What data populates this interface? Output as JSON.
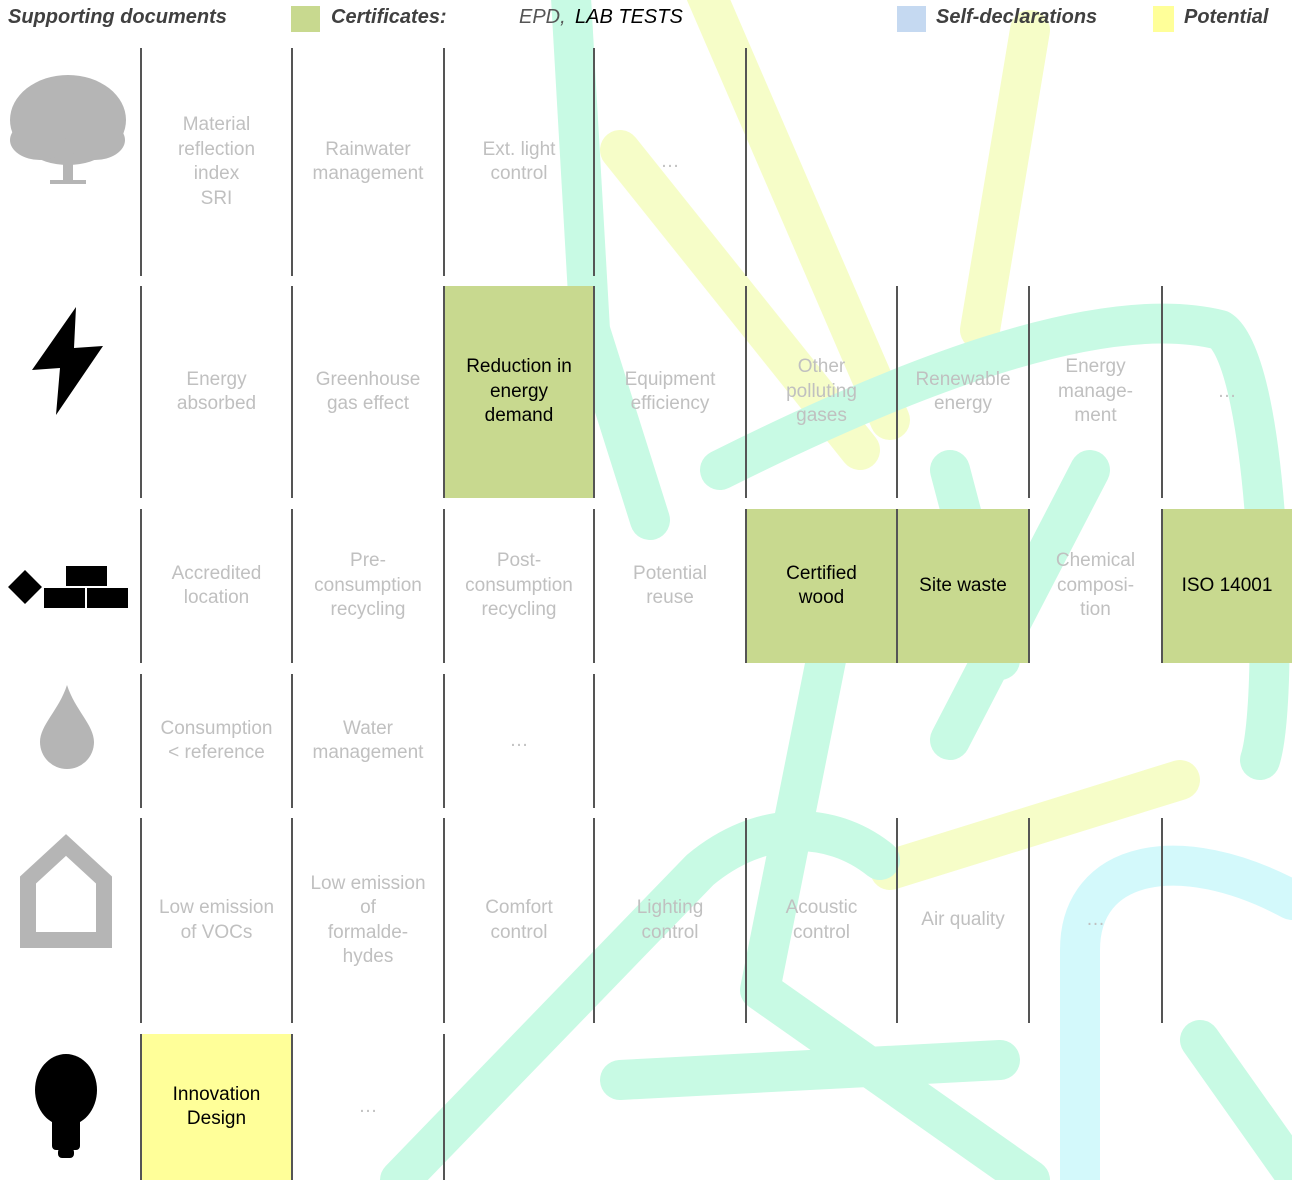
{
  "legend": {
    "title": "Supporting documents",
    "items": [
      {
        "label": "Certificates:",
        "color": "#c8d98f",
        "examples": [
          "EPD,",
          "LAB TESTS"
        ]
      },
      {
        "label": "Self-declarations",
        "color": "#c5d9f1"
      },
      {
        "label": "Potential",
        "color": "#ffff99"
      }
    ]
  },
  "rows": [
    {
      "cells": [
        {
          "lines": [
            "Material",
            "reflection",
            "index",
            "SRI"
          ]
        },
        {
          "lines": [
            "Rainwater",
            "management"
          ]
        },
        {
          "lines": [
            "Ext. light",
            "control"
          ]
        },
        {
          "lines": [
            "…"
          ]
        }
      ]
    },
    {
      "cells": [
        {
          "lines": [
            "Energy",
            "absorbed"
          ]
        },
        {
          "lines": [
            "Greenhouse",
            "gas effect"
          ]
        },
        {
          "lines": [
            "Reduction in",
            "energy",
            "demand"
          ],
          "color": "#c8d98f"
        },
        {
          "lines": [
            "Equipment",
            "efficiency"
          ]
        },
        {
          "lines": [
            "Other",
            "polluting",
            "gases"
          ]
        },
        {
          "lines": [
            "Renewable",
            "energy"
          ]
        },
        {
          "lines": [
            "Energy",
            "manage-",
            "ment"
          ]
        },
        {
          "lines": [
            "…"
          ]
        }
      ]
    },
    {
      "cells": [
        {
          "lines": [
            "Accredited",
            "location"
          ]
        },
        {
          "lines": [
            "Pre-",
            "consumption",
            "recycling"
          ]
        },
        {
          "lines": [
            "Post-",
            "consumption",
            "recycling"
          ]
        },
        {
          "lines": [
            "Potential",
            "reuse"
          ]
        },
        {
          "lines": [
            "Certified",
            "wood"
          ],
          "color": "#c8d98f"
        },
        {
          "lines": [
            "Site waste"
          ],
          "color": "#c8d98f"
        },
        {
          "lines": [
            "Chemical",
            "composi-",
            "tion"
          ]
        },
        {
          "lines": [
            "ISO 14001"
          ],
          "color": "#c8d98f"
        }
      ]
    },
    {
      "cells": [
        {
          "lines": [
            "Consumption",
            "< reference"
          ]
        },
        {
          "lines": [
            "Water",
            "management"
          ]
        },
        {
          "lines": [
            "…"
          ]
        }
      ]
    },
    {
      "cells": [
        {
          "lines": [
            "Low emission",
            "of VOCs"
          ]
        },
        {
          "lines": [
            "Low emission",
            "of",
            "formalde-",
            "hydes"
          ]
        },
        {
          "lines": [
            "Comfort",
            "control"
          ]
        },
        {
          "lines": [
            "Lighting",
            "control"
          ]
        },
        {
          "lines": [
            "Acoustic",
            "control"
          ]
        },
        {
          "lines": [
            "Air quality"
          ]
        },
        {
          "lines": [
            "…"
          ]
        }
      ]
    },
    {
      "cells": [
        {
          "lines": [
            "Innovation",
            "Design"
          ],
          "color": "#ffff99"
        },
        {
          "lines": [
            "…"
          ]
        }
      ]
    }
  ]
}
